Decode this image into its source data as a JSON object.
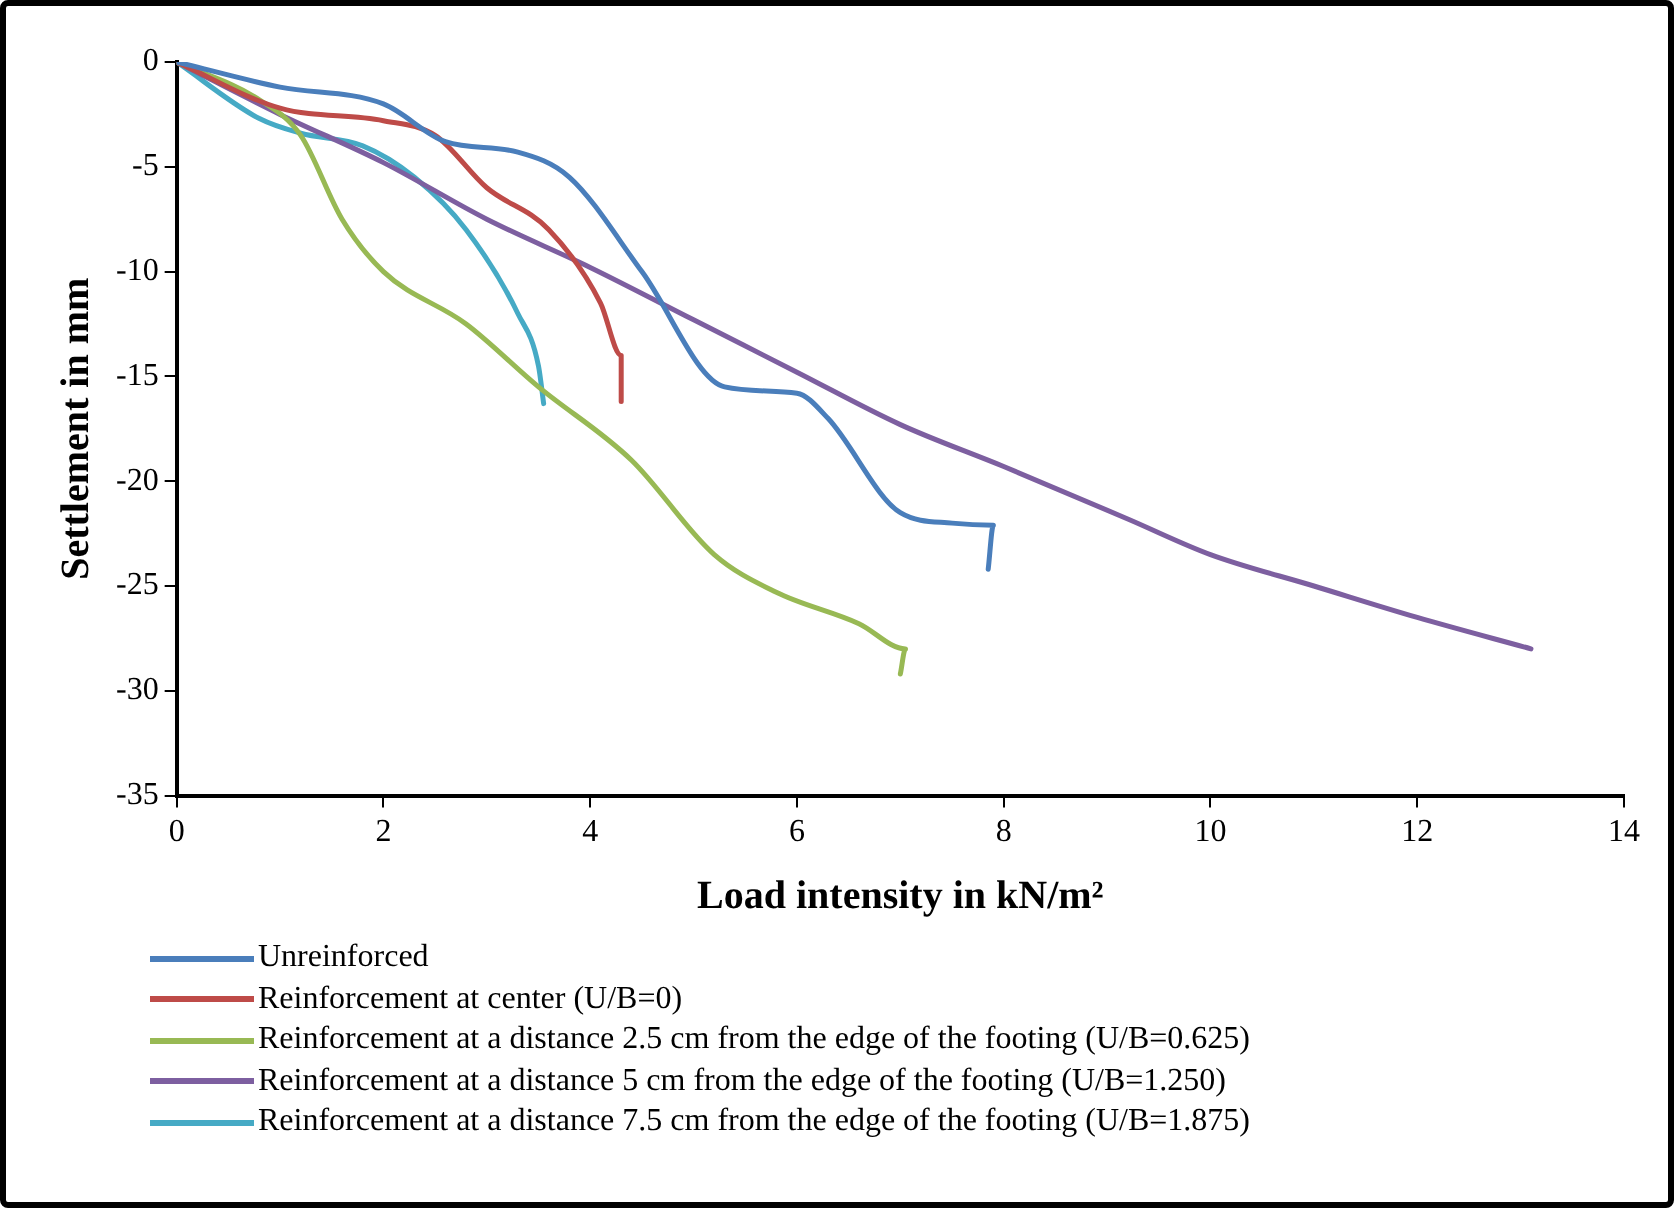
{
  "chart_data": {
    "type": "line",
    "xlabel": "Load intensity in kN/m²",
    "ylabel": "Settlement in mm",
    "xlim": [
      0,
      14
    ],
    "xticks": [
      0,
      2,
      4,
      6,
      8,
      10,
      12,
      14
    ],
    "ylim": [
      -35,
      0
    ],
    "yticks": [
      -35,
      -30,
      -25,
      -20,
      -15,
      -10,
      -5,
      0
    ],
    "grid": false,
    "legend": "bottom",
    "marker": "none",
    "series": [
      {
        "name": "Unreinforced",
        "color": "#4a7ebb",
        "x": [
          0,
          1,
          2,
          2.6,
          3.3,
          3.8,
          4.5,
          5.3,
          6,
          6.3,
          7,
          7.5,
          7.9,
          7.85
        ],
        "values": [
          0,
          -1.2,
          -2,
          -3.8,
          -4.3,
          -5.5,
          -10,
          -15.5,
          -15.8,
          -17,
          -21.5,
          -22,
          -22.1,
          -24.2
        ]
      },
      {
        "name": "Reinforcement at center (U/B=0)",
        "color": "#be4b48",
        "x": [
          0,
          1,
          2,
          2.5,
          3,
          3.6,
          4.1,
          4.3,
          4.3
        ],
        "values": [
          0,
          -2.2,
          -2.8,
          -3.5,
          -6,
          -8,
          -11.5,
          -14,
          -16.2
        ]
      },
      {
        "name": "Reinforcement at a distance 2.5 cm from the edge of the footing (U/B=0.625)",
        "color": "#98b954",
        "x": [
          0,
          0.8,
          1.2,
          1.6,
          2,
          2.8,
          3.5,
          4.4,
          5.2,
          5.8,
          6.6,
          7.05,
          7
        ],
        "values": [
          0,
          -1.8,
          -3.5,
          -7.5,
          -10,
          -12.5,
          -15.5,
          -19,
          -23.5,
          -25.3,
          -26.8,
          -28,
          -29.2
        ]
      },
      {
        "name": "Reinforcement at a distance 5 cm from the edge of the footing (U/B=1.250)",
        "color": "#7d5fa0",
        "x": [
          0,
          1,
          2,
          3,
          4,
          5,
          6,
          7,
          8,
          9.2,
          10,
          11,
          12,
          13.1
        ],
        "values": [
          0,
          -2.5,
          -4.8,
          -7.5,
          -9.8,
          -12.3,
          -14.8,
          -17.3,
          -19.3,
          -21.8,
          -23.5,
          -25,
          -26.5,
          -28
        ]
      },
      {
        "name": "Reinforcement at a distance 7.5 cm from the edge of the footing (U/B=1.875)",
        "color": "#46aac5",
        "x": [
          0,
          0.8,
          1.2,
          1.8,
          2.3,
          2.8,
          3.3,
          3.5,
          3.55
        ],
        "values": [
          0,
          -2.7,
          -3.4,
          -4,
          -5.5,
          -8,
          -12,
          -14.5,
          -16.3
        ]
      }
    ]
  }
}
